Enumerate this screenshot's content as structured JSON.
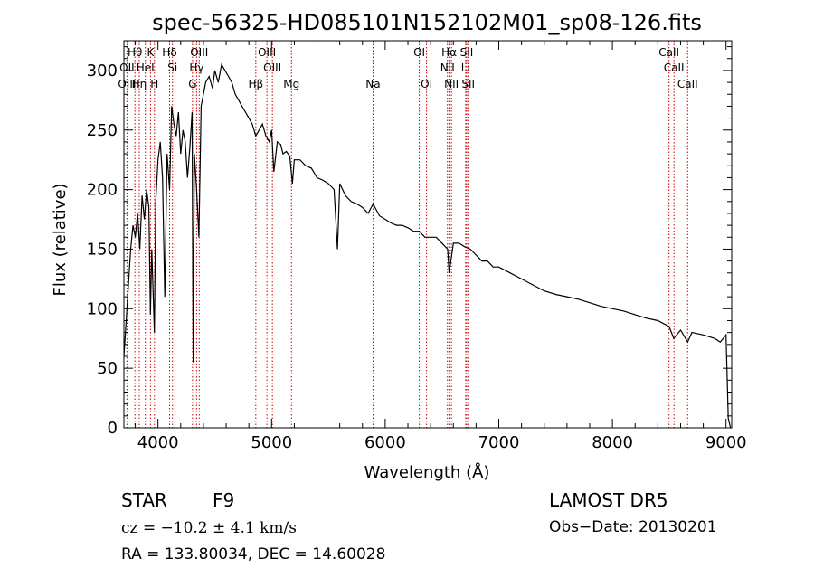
{
  "chart_data": {
    "type": "line",
    "title": "spec-56325-HD085101N152102M01_sp08-126.fits",
    "xlabel": "Wavelength (Å)",
    "ylabel": "Flux (relative)",
    "xlim": [
      3700,
      9050
    ],
    "ylim": [
      0,
      325
    ],
    "xticks": [
      4000,
      5000,
      6000,
      7000,
      8000,
      9000
    ],
    "yticks": [
      0,
      50,
      100,
      150,
      200,
      250,
      300
    ],
    "grid": false,
    "line_color": "#000000",
    "marker_color": "#cc0000",
    "series": [
      {
        "x": [
          3700,
          3720,
          3740,
          3760,
          3780,
          3800,
          3820,
          3840,
          3860,
          3880,
          3900,
          3920,
          3933,
          3945,
          3968,
          3980,
          4000,
          4020,
          4040,
          4060,
          4080,
          4102,
          4120,
          4140,
          4160,
          4180,
          4200,
          4220,
          4240,
          4260,
          4280,
          4300,
          4310,
          4320,
          4340,
          4360,
          4380,
          4400,
          4420,
          4450,
          4480,
          4500,
          4530,
          4560,
          4590,
          4620,
          4650,
          4680,
          4710,
          4740,
          4770,
          4800,
          4830,
          4861,
          4890,
          4920,
          4950,
          4980,
          5000,
          5020,
          5050,
          5080,
          5100,
          5130,
          5160,
          5183,
          5200,
          5250,
          5300,
          5350,
          5400,
          5450,
          5500,
          5550,
          5580,
          5600,
          5650,
          5700,
          5750,
          5800,
          5850,
          5893,
          5950,
          6000,
          6050,
          6100,
          6150,
          6200,
          6250,
          6300,
          6350,
          6400,
          6450,
          6500,
          6550,
          6563,
          6600,
          6650,
          6700,
          6750,
          6800,
          6850,
          6900,
          6950,
          7000,
          7100,
          7200,
          7300,
          7400,
          7500,
          7600,
          7700,
          7800,
          7900,
          8000,
          8100,
          8200,
          8300,
          8400,
          8500,
          8540,
          8600,
          8662,
          8700,
          8800,
          8900,
          8950,
          9000,
          9020,
          9040
        ],
        "y": [
          60,
          90,
          120,
          150,
          170,
          160,
          180,
          150,
          195,
          175,
          200,
          185,
          95,
          150,
          80,
          190,
          225,
          240,
          210,
          110,
          230,
          200,
          270,
          255,
          245,
          265,
          230,
          250,
          240,
          210,
          235,
          265,
          55,
          230,
          200,
          160,
          270,
          280,
          290,
          295,
          285,
          300,
          290,
          305,
          300,
          295,
          290,
          280,
          275,
          270,
          265,
          260,
          255,
          245,
          250,
          255,
          245,
          240,
          250,
          215,
          240,
          238,
          230,
          232,
          228,
          205,
          225,
          225,
          220,
          218,
          210,
          208,
          205,
          200,
          150,
          205,
          195,
          190,
          188,
          185,
          180,
          188,
          178,
          175,
          172,
          170,
          170,
          168,
          165,
          165,
          160,
          160,
          160,
          155,
          150,
          130,
          155,
          155,
          152,
          150,
          145,
          140,
          140,
          135,
          135,
          130,
          125,
          120,
          115,
          112,
          110,
          108,
          105,
          102,
          100,
          98,
          95,
          92,
          90,
          85,
          75,
          82,
          72,
          80,
          78,
          75,
          72,
          78,
          8,
          0
        ]
      }
    ],
    "annotations": [
      {
        "label": "Hθ",
        "x": 3797,
        "row": 1
      },
      {
        "label": "K",
        "x": 3934,
        "row": 1
      },
      {
        "label": "Hδ",
        "x": 4102,
        "row": 1
      },
      {
        "label": "OIII",
        "x": 4363,
        "row": 1
      },
      {
        "label": "OIII",
        "x": 4959,
        "row": 1
      },
      {
        "label": "OI",
        "x": 6300,
        "row": 1
      },
      {
        "label": "Hα",
        "x": 6563,
        "row": 1
      },
      {
        "label": "SII",
        "x": 6717,
        "row": 1
      },
      {
        "label": "CaII",
        "x": 8498,
        "row": 1
      },
      {
        "label": "OII",
        "x": 3727,
        "row": 2
      },
      {
        "label": "HeI",
        "x": 3889,
        "row": 2
      },
      {
        "label": "Si",
        "x": 4128,
        "row": 2
      },
      {
        "label": "Hγ",
        "x": 4340,
        "row": 2
      },
      {
        "label": "OIII",
        "x": 5007,
        "row": 2
      },
      {
        "label": "NII",
        "x": 6548,
        "row": 2
      },
      {
        "label": "Li",
        "x": 6708,
        "row": 2
      },
      {
        "label": "CaII",
        "x": 8542,
        "row": 2
      },
      {
        "label": "OIII",
        "x": 3727,
        "row": 3
      },
      {
        "label": "Hη",
        "x": 3835,
        "row": 3
      },
      {
        "label": "H",
        "x": 3969,
        "row": 3
      },
      {
        "label": "G",
        "x": 4304,
        "row": 3
      },
      {
        "label": "Hβ",
        "x": 4861,
        "row": 3
      },
      {
        "label": "Mg",
        "x": 5175,
        "row": 3
      },
      {
        "label": "Na",
        "x": 5893,
        "row": 3
      },
      {
        "label": "OI",
        "x": 6364,
        "row": 3
      },
      {
        "label": "NII",
        "x": 6583,
        "row": 3
      },
      {
        "label": "SII",
        "x": 6731,
        "row": 3
      },
      {
        "label": "CaII",
        "x": 8662,
        "row": 3
      }
    ]
  },
  "info": {
    "object_type": "STAR",
    "subclass": "F9",
    "survey": "LAMOST DR5",
    "velocity": "cz = −10.2 ± 4.1 km/s",
    "obs_date": "Obs−Date: 20130201",
    "coords": "RA = 133.80034, DEC =  14.60028"
  }
}
